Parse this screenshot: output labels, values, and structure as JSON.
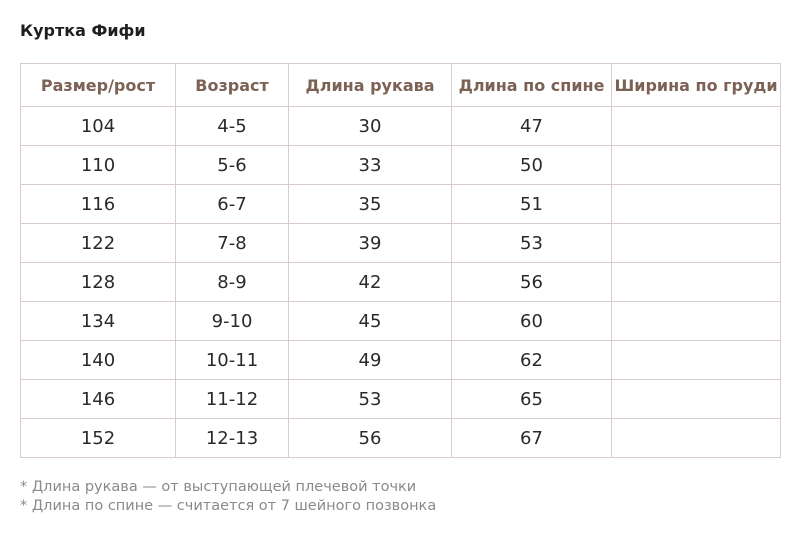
{
  "title": "Куртка Фифи",
  "table": {
    "headers": [
      "Размер/рост",
      "Возраст",
      "Длина рукава",
      "Длина по спине",
      "Ширина по груди"
    ],
    "rows": [
      [
        "104",
        "4-5",
        "30",
        "47",
        ""
      ],
      [
        "110",
        "5-6",
        "33",
        "50",
        ""
      ],
      [
        "116",
        "6-7",
        "35",
        "51",
        ""
      ],
      [
        "122",
        "7-8",
        "39",
        "53",
        ""
      ],
      [
        "128",
        "8-9",
        "42",
        "56",
        ""
      ],
      [
        "134",
        "9-10",
        "45",
        "60",
        ""
      ],
      [
        "140",
        "10-11",
        "49",
        "62",
        ""
      ],
      [
        "146",
        "11-12",
        "53",
        "65",
        ""
      ],
      [
        "152",
        "12-13",
        "56",
        "67",
        ""
      ]
    ]
  },
  "notes": [
    "* Длина рукава — от выступающей плечевой точки",
    "* Длина по спине — считается от 7 шейного позвонка"
  ],
  "colors": {
    "header_text": "#7c6155",
    "border": "#d9cccc",
    "note_text": "#8a8a8a"
  }
}
